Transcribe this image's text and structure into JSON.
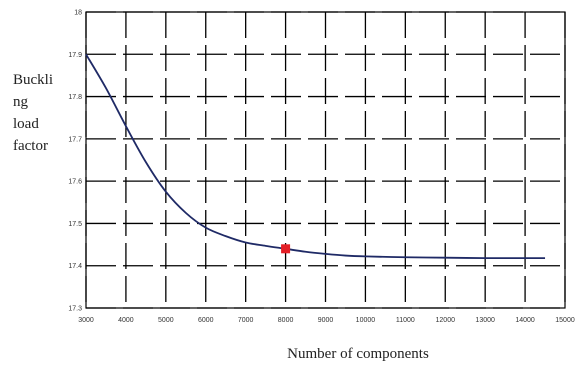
{
  "chart_data": {
    "type": "line",
    "ylabel_lines": [
      "Buckli",
      "ng",
      "load",
      "factor"
    ],
    "xlabel": "Number of components",
    "xlim": [
      3000,
      15000
    ],
    "ylim": [
      17.3,
      18.0
    ],
    "x_ticks": [
      3000,
      4000,
      5000,
      6000,
      7000,
      8000,
      9000,
      10000,
      11000,
      12000,
      13000,
      14000,
      15000
    ],
    "x_tick_labels": [
      "3000",
      "4000",
      "5000",
      "6000",
      "7000",
      "8000",
      "9000",
      "10000",
      "11000",
      "12000",
      "13000",
      "14000",
      "15000"
    ],
    "y_ticks": [
      17.3,
      17.4,
      17.5,
      17.6,
      17.7,
      17.8,
      17.9,
      18.0
    ],
    "y_tick_labels": [
      "17.3",
      "17.4",
      "17.5",
      "17.6",
      "17.7",
      "17.8",
      "17.9",
      "18"
    ],
    "grid": true,
    "series": [
      {
        "x": [
          3000,
          3500,
          4000,
          4500,
          5000,
          5500,
          6000,
          6500,
          7000,
          7500,
          8000,
          8500,
          9000,
          9500,
          10000,
          11000,
          12000,
          13000,
          14000,
          14500
        ],
        "y": [
          17.9,
          17.82,
          17.73,
          17.645,
          17.575,
          17.525,
          17.49,
          17.47,
          17.455,
          17.447,
          17.44,
          17.433,
          17.428,
          17.424,
          17.422,
          17.42,
          17.419,
          17.418,
          17.418,
          17.418
        ],
        "color": "#1f2a66"
      }
    ],
    "highlight_point": {
      "x": 8000,
      "y": 17.44,
      "color": "#e41f26"
    }
  }
}
